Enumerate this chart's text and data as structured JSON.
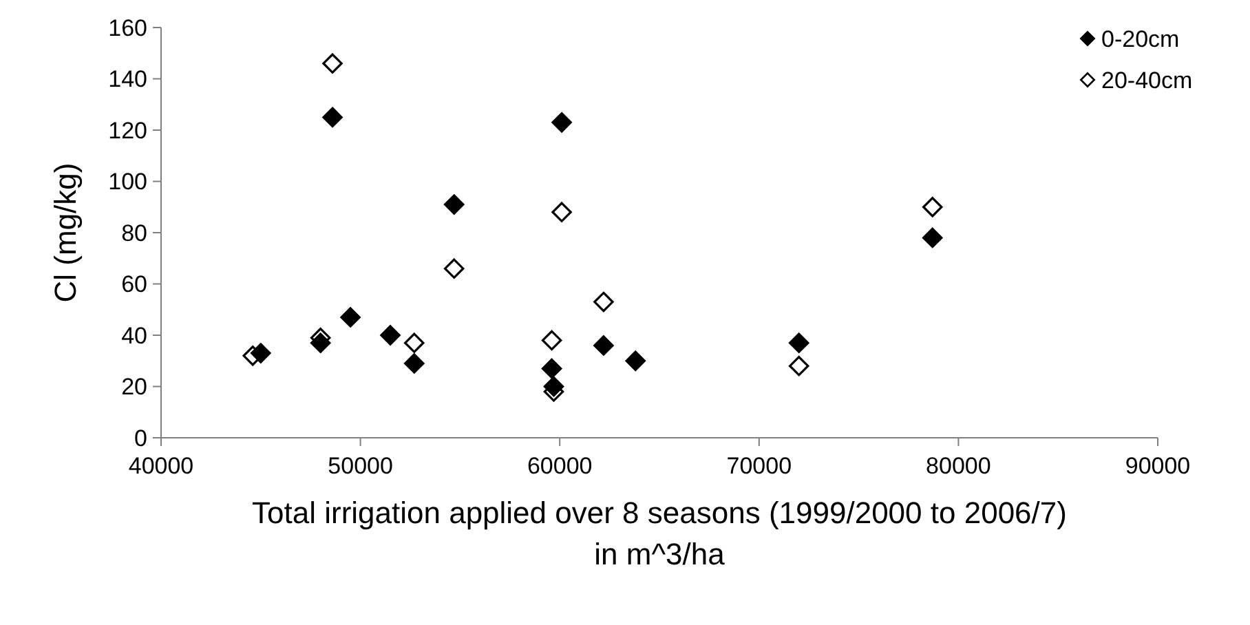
{
  "chart_data": {
    "type": "scatter",
    "xlabel": "Total irrigation applied over 8 seasons (1999/2000 to 2006/7) in m^3/ha",
    "ylabel": "Cl (mg/kg)",
    "xlim": [
      40000,
      90000
    ],
    "xticks": [
      40000,
      50000,
      60000,
      70000,
      80000,
      90000
    ],
    "ylim": [
      0,
      160
    ],
    "yticks": [
      0,
      20,
      40,
      60,
      80,
      100,
      120,
      140,
      160
    ],
    "marker": "diamond",
    "legend": "top right",
    "grid": false,
    "series": [
      {
        "name": "0-20cm",
        "color": "#000000",
        "x": [
          45000,
          48000,
          48600,
          49500,
          51500,
          52700,
          54700,
          60100,
          59600,
          59700,
          62200,
          63800,
          72000,
          78700
        ],
        "values": [
          33,
          37,
          125,
          47,
          40,
          29,
          91,
          123,
          27,
          20,
          36,
          30,
          37,
          78
        ]
      },
      {
        "name": "20-40cm",
        "color": "#ffffff",
        "x": [
          44600,
          48000,
          48600,
          52700,
          54700,
          60100,
          59600,
          59700,
          62200,
          72000,
          78700
        ],
        "values": [
          32,
          39,
          146,
          37,
          66,
          88,
          38,
          18,
          53,
          28,
          90
        ]
      }
    ]
  }
}
